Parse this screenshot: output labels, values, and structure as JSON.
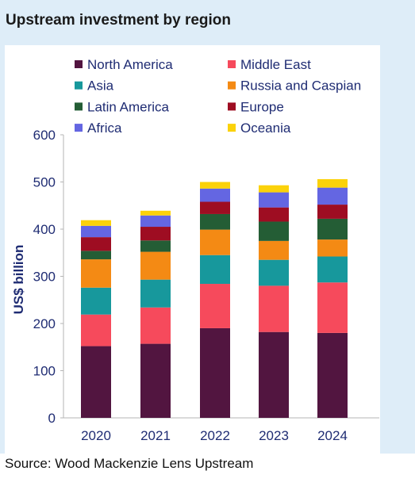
{
  "title": "Upstream investment by region",
  "source": "Source: Wood Mackenzie Lens Upstream",
  "chart_data": {
    "type": "bar",
    "stacked": true,
    "title": "Upstream investment by region",
    "xlabel": "",
    "ylabel": "US$ billion",
    "ylim": [
      0,
      600
    ],
    "yticks": [
      0,
      100,
      200,
      300,
      400,
      500,
      600
    ],
    "grid": false,
    "legend_position": "top",
    "categories": [
      "2020",
      "2021",
      "2022",
      "2023",
      "2024"
    ],
    "series": [
      {
        "name": "North America",
        "color": "#521540",
        "values": [
          152,
          157,
          190,
          182,
          180
        ]
      },
      {
        "name": "Middle East",
        "color": "#f64a5c",
        "values": [
          67,
          77,
          94,
          98,
          107
        ]
      },
      {
        "name": "Asia",
        "color": "#17989c",
        "values": [
          57,
          59,
          61,
          55,
          55
        ]
      },
      {
        "name": "Russia and Caspian",
        "color": "#f48a14",
        "values": [
          60,
          59,
          54,
          40,
          36
        ]
      },
      {
        "name": "Latin America",
        "color": "#245d35",
        "values": [
          18,
          24,
          33,
          41,
          44
        ]
      },
      {
        "name": "Europe",
        "color": "#9e0d22",
        "values": [
          29,
          29,
          26,
          30,
          30
        ]
      },
      {
        "name": "Africa",
        "color": "#6466e2",
        "values": [
          24,
          24,
          28,
          32,
          36
        ]
      },
      {
        "name": "Oceania",
        "color": "#fbd20a",
        "values": [
          12,
          10,
          14,
          15,
          18
        ]
      }
    ]
  }
}
